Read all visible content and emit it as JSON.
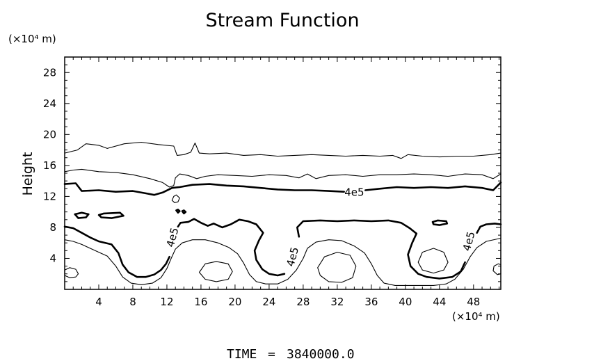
{
  "chart_data": {
    "type": "contour",
    "title": "Stream Function",
    "ylabel": "Height",
    "y_unit": "(×10⁴ m)",
    "x_unit": "(×10⁴ m)",
    "xlim": [
      0,
      51.2
    ],
    "ylim": [
      0,
      30
    ],
    "xticks": [
      4,
      8,
      12,
      16,
      20,
      24,
      28,
      32,
      36,
      40,
      44,
      48
    ],
    "yticks": [
      4,
      8,
      12,
      16,
      20,
      24,
      28
    ],
    "grid": false,
    "contour_labels": [
      {
        "text": "4e5",
        "x": 34.0,
        "y": 12.5,
        "rotate": 0
      },
      {
        "text": "4e5",
        "x": 12.7,
        "y": 6.7,
        "rotate": -75
      },
      {
        "text": "4e5",
        "x": 26.8,
        "y": 4.2,
        "rotate": -75
      },
      {
        "text": "4e5",
        "x": 47.5,
        "y": 6.2,
        "rotate": -75
      }
    ],
    "contours": [
      {
        "bold": false,
        "closed": false,
        "points": [
          [
            0,
            17.6
          ],
          [
            1.5,
            18.0
          ],
          [
            2.5,
            18.8
          ],
          [
            4,
            18.6
          ],
          [
            5,
            18.2
          ],
          [
            7,
            18.8
          ],
          [
            9,
            19.0
          ],
          [
            11,
            18.7
          ],
          [
            12.8,
            18.5
          ],
          [
            13.2,
            17.3
          ],
          [
            14,
            17.4
          ],
          [
            14.8,
            17.7
          ],
          [
            15.3,
            18.9
          ],
          [
            15.8,
            17.6
          ],
          [
            17,
            17.5
          ],
          [
            19,
            17.6
          ],
          [
            21,
            17.3
          ],
          [
            23,
            17.4
          ],
          [
            25,
            17.2
          ],
          [
            27,
            17.3
          ],
          [
            29,
            17.4
          ],
          [
            31,
            17.3
          ],
          [
            33,
            17.2
          ],
          [
            35,
            17.3
          ],
          [
            37,
            17.2
          ],
          [
            38.5,
            17.3
          ],
          [
            39.5,
            16.9
          ],
          [
            40.3,
            17.4
          ],
          [
            42,
            17.2
          ],
          [
            44,
            17.1
          ],
          [
            46,
            17.2
          ],
          [
            48,
            17.2
          ],
          [
            50,
            17.4
          ],
          [
            51.2,
            17.6
          ]
        ]
      },
      {
        "bold": false,
        "closed": false,
        "points": [
          [
            0,
            15.2
          ],
          [
            1,
            15.4
          ],
          [
            2,
            15.5
          ],
          [
            4,
            15.2
          ],
          [
            6,
            15.1
          ],
          [
            8,
            14.8
          ],
          [
            10,
            14.3
          ],
          [
            11.5,
            13.8
          ],
          [
            12.3,
            13.2
          ],
          [
            12.8,
            13.4
          ],
          [
            13,
            14.4
          ],
          [
            13.5,
            14.9
          ],
          [
            14.5,
            14.7
          ],
          [
            15.5,
            14.3
          ],
          [
            16.5,
            14.6
          ],
          [
            18,
            14.8
          ],
          [
            20,
            14.7
          ],
          [
            22,
            14.6
          ],
          [
            24,
            14.8
          ],
          [
            26,
            14.7
          ],
          [
            27.5,
            14.4
          ],
          [
            28.5,
            14.9
          ],
          [
            29.5,
            14.3
          ],
          [
            31,
            14.7
          ],
          [
            33,
            14.8
          ],
          [
            35,
            14.6
          ],
          [
            37,
            14.8
          ],
          [
            39,
            14.8
          ],
          [
            41,
            14.9
          ],
          [
            43,
            14.8
          ],
          [
            45,
            14.6
          ],
          [
            47,
            14.9
          ],
          [
            49,
            14.8
          ],
          [
            50.3,
            14.3
          ],
          [
            51.2,
            14.9
          ]
        ]
      },
      {
        "bold": true,
        "closed": false,
        "points": [
          [
            0,
            13.6
          ],
          [
            1.3,
            13.7
          ],
          [
            2,
            12.7
          ],
          [
            4,
            12.8
          ],
          [
            6,
            12.6
          ],
          [
            8,
            12.7
          ],
          [
            9.5,
            12.4
          ],
          [
            10.5,
            12.2
          ],
          [
            11.5,
            12.5
          ],
          [
            12.6,
            13.1
          ],
          [
            13.5,
            13.2
          ],
          [
            15,
            13.5
          ],
          [
            17,
            13.6
          ],
          [
            19,
            13.4
          ],
          [
            21,
            13.3
          ],
          [
            23,
            13.1
          ],
          [
            25,
            12.9
          ],
          [
            27,
            12.8
          ],
          [
            29,
            12.8
          ],
          [
            31,
            12.7
          ],
          [
            32.8,
            12.6
          ]
        ]
      },
      {
        "bold": true,
        "closed": false,
        "points": [
          [
            35.3,
            12.8
          ],
          [
            37,
            13.0
          ],
          [
            39,
            13.2
          ],
          [
            41,
            13.1
          ],
          [
            43,
            13.2
          ],
          [
            45,
            13.1
          ],
          [
            47,
            13.3
          ],
          [
            49,
            13.1
          ],
          [
            50.3,
            12.8
          ],
          [
            51.2,
            13.8
          ]
        ]
      },
      {
        "bold": true,
        "closed": false,
        "points": [
          [
            0,
            8.1
          ],
          [
            1,
            7.9
          ],
          [
            2,
            7.3
          ],
          [
            3,
            6.7
          ],
          [
            4,
            6.2
          ],
          [
            5.5,
            5.8
          ],
          [
            6.3,
            4.7
          ],
          [
            6.8,
            3.2
          ],
          [
            7.5,
            2.2
          ],
          [
            8.5,
            1.6
          ],
          [
            9.5,
            1.6
          ],
          [
            10.5,
            1.9
          ],
          [
            11.3,
            2.5
          ],
          [
            11.9,
            3.3
          ],
          [
            12.3,
            4.2
          ]
        ]
      },
      {
        "bold": true,
        "closed": false,
        "points": [
          [
            13.3,
            8.1
          ],
          [
            13.6,
            8.6
          ],
          [
            14.5,
            8.7
          ],
          [
            15.2,
            9.1
          ],
          [
            16,
            8.6
          ],
          [
            16.8,
            8.2
          ],
          [
            17.5,
            8.5
          ],
          [
            18.5,
            8.0
          ],
          [
            19.5,
            8.4
          ],
          [
            20.5,
            9.0
          ],
          [
            21.5,
            8.8
          ],
          [
            22.5,
            8.4
          ],
          [
            23.3,
            7.3
          ],
          [
            22.8,
            6.3
          ],
          [
            22.3,
            5.0
          ],
          [
            22.5,
            3.8
          ],
          [
            23.2,
            2.6
          ],
          [
            24,
            2.0
          ],
          [
            25,
            1.8
          ],
          [
            25.8,
            2.0
          ]
        ]
      },
      {
        "bold": true,
        "closed": false,
        "points": [
          [
            27.5,
            6.8
          ],
          [
            27.3,
            8.0
          ],
          [
            28,
            8.8
          ],
          [
            30,
            8.9
          ],
          [
            32,
            8.8
          ],
          [
            34,
            8.9
          ],
          [
            36,
            8.8
          ],
          [
            38,
            8.9
          ],
          [
            39.5,
            8.6
          ],
          [
            40.5,
            7.9
          ],
          [
            41.3,
            7.2
          ],
          [
            40.8,
            6.0
          ],
          [
            40.3,
            4.5
          ],
          [
            40.6,
            3.0
          ],
          [
            41.5,
            2.0
          ],
          [
            42.5,
            1.6
          ],
          [
            44,
            1.4
          ],
          [
            45.5,
            1.6
          ],
          [
            46.5,
            2.3
          ],
          [
            47,
            3.5
          ]
        ]
      },
      {
        "bold": true,
        "closed": false,
        "points": [
          [
            48.4,
            7.3
          ],
          [
            48.8,
            8.1
          ],
          [
            49.5,
            8.4
          ],
          [
            50.5,
            8.5
          ],
          [
            51.2,
            8.4
          ]
        ]
      },
      {
        "bold": false,
        "closed": false,
        "points": [
          [
            0,
            6.4
          ],
          [
            1,
            6.2
          ],
          [
            2,
            5.8
          ],
          [
            3,
            5.3
          ],
          [
            4,
            4.8
          ],
          [
            5,
            4.3
          ],
          [
            6,
            3.0
          ],
          [
            6.8,
            1.6
          ],
          [
            7.8,
            0.8
          ],
          [
            9,
            0.6
          ],
          [
            10.3,
            0.8
          ],
          [
            11.3,
            1.5
          ],
          [
            12,
            2.7
          ],
          [
            12.5,
            4.0
          ],
          [
            13,
            5.2
          ],
          [
            13.8,
            6.0
          ],
          [
            15,
            6.4
          ],
          [
            16.5,
            6.4
          ],
          [
            18,
            6.0
          ],
          [
            19.3,
            5.4
          ],
          [
            20.3,
            4.6
          ],
          [
            21,
            3.4
          ],
          [
            21.7,
            1.9
          ],
          [
            22.5,
            1.0
          ],
          [
            23.6,
            0.7
          ],
          [
            25,
            0.7
          ],
          [
            26.2,
            1.3
          ],
          [
            27.2,
            2.5
          ],
          [
            28,
            4.0
          ],
          [
            28.5,
            5.3
          ],
          [
            29.5,
            6.1
          ],
          [
            31,
            6.4
          ],
          [
            32.5,
            6.3
          ],
          [
            34,
            5.6
          ],
          [
            35.2,
            4.7
          ],
          [
            36,
            3.3
          ],
          [
            36.7,
            1.8
          ],
          [
            37.5,
            0.8
          ],
          [
            38.8,
            0.5
          ],
          [
            40.3,
            0.5
          ],
          [
            41.8,
            0.5
          ],
          [
            43.3,
            0.5
          ],
          [
            44.8,
            0.7
          ],
          [
            45.8,
            1.3
          ],
          [
            46.8,
            2.6
          ],
          [
            47.6,
            4.2
          ],
          [
            48.4,
            5.4
          ],
          [
            49.5,
            6.2
          ],
          [
            51.2,
            6.6
          ]
        ]
      },
      {
        "bold": false,
        "closed": true,
        "points": [
          [
            0,
            2.5
          ],
          [
            0.6,
            2.8
          ],
          [
            1.3,
            2.6
          ],
          [
            1.6,
            2.0
          ],
          [
            1.3,
            1.6
          ],
          [
            0.6,
            1.5
          ],
          [
            0,
            1.8
          ]
        ]
      },
      {
        "bold": false,
        "closed": true,
        "points": [
          [
            15.8,
            2.2
          ],
          [
            16.5,
            3.3
          ],
          [
            17.8,
            3.6
          ],
          [
            19.2,
            3.3
          ],
          [
            19.7,
            2.3
          ],
          [
            19.2,
            1.3
          ],
          [
            17.8,
            1.0
          ],
          [
            16.5,
            1.3
          ]
        ]
      },
      {
        "bold": false,
        "closed": true,
        "points": [
          [
            29.7,
            2.8
          ],
          [
            30.5,
            4.2
          ],
          [
            32,
            4.8
          ],
          [
            33.5,
            4.4
          ],
          [
            34.2,
            3.0
          ],
          [
            33.8,
            1.5
          ],
          [
            32.5,
            0.9
          ],
          [
            31,
            1.0
          ],
          [
            30,
            1.8
          ]
        ]
      },
      {
        "bold": false,
        "closed": true,
        "points": [
          [
            41.5,
            3.5
          ],
          [
            42,
            4.8
          ],
          [
            43.3,
            5.3
          ],
          [
            44.5,
            4.8
          ],
          [
            45,
            3.5
          ],
          [
            44.5,
            2.5
          ],
          [
            43.3,
            2.1
          ],
          [
            42,
            2.5
          ]
        ]
      },
      {
        "bold": false,
        "closed": true,
        "points": [
          [
            50.4,
            3.0
          ],
          [
            50.9,
            3.3
          ],
          [
            51.2,
            3.2
          ],
          [
            51.2,
            2.0
          ],
          [
            50.8,
            1.9
          ],
          [
            50.3,
            2.4
          ]
        ]
      },
      {
        "bold": false,
        "closed": true,
        "points": [
          [
            12.8,
            12.0
          ],
          [
            13.1,
            12.2
          ],
          [
            13.5,
            11.8
          ],
          [
            13.3,
            11.3
          ],
          [
            12.9,
            11.2
          ],
          [
            12.6,
            11.5
          ]
        ]
      },
      {
        "bold": true,
        "closed": true,
        "points": [
          [
            1.2,
            9.7
          ],
          [
            2,
            9.9
          ],
          [
            2.8,
            9.7
          ],
          [
            2.5,
            9.3
          ],
          [
            1.6,
            9.2
          ]
        ]
      },
      {
        "bold": true,
        "closed": true,
        "points": [
          [
            4,
            9.6
          ],
          [
            4.6,
            9.8
          ],
          [
            6.5,
            9.9
          ],
          [
            6.9,
            9.5
          ],
          [
            5.5,
            9.2
          ],
          [
            4.3,
            9.3
          ]
        ]
      },
      {
        "bold": true,
        "closed": true,
        "points": [
          [
            43.2,
            8.7
          ],
          [
            43.8,
            8.9
          ],
          [
            44.8,
            8.8
          ],
          [
            44.9,
            8.5
          ],
          [
            44,
            8.3
          ],
          [
            43.3,
            8.4
          ]
        ]
      },
      {
        "bold": true,
        "closed": true,
        "points": [
          [
            13.1,
            10.2
          ],
          [
            13.3,
            10.3
          ],
          [
            13.5,
            10.1
          ],
          [
            13.3,
            9.9
          ]
        ]
      },
      {
        "bold": true,
        "closed": true,
        "points": [
          [
            13.8,
            10.1
          ],
          [
            14,
            10.2
          ],
          [
            14.2,
            10.0
          ],
          [
            14,
            9.8
          ]
        ]
      }
    ]
  },
  "footer": {
    "time_label": "TIME",
    "time_eq": "=",
    "time_value": "3840000.0"
  }
}
